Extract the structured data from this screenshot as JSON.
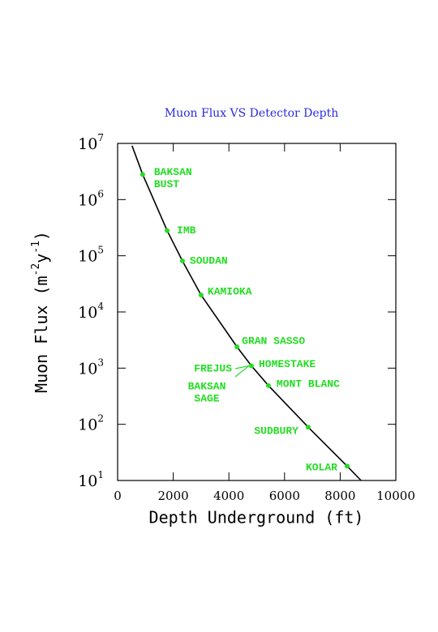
{
  "chart_data": {
    "type": "scatter",
    "title": "Muon Flux VS Detector Depth",
    "xlabel": "Depth Underground (ft)",
    "ylabel": [
      "Muon Flux (m",
      "-2",
      "y",
      "-1",
      ")"
    ],
    "xlim": [
      0,
      10000
    ],
    "xticks": [
      0,
      2000,
      4000,
      6000,
      8000,
      10000
    ],
    "ylim": [
      10,
      10000000
    ],
    "log_y": true,
    "yticks": [
      {
        "value": 10,
        "label": "10",
        "exp": "1"
      },
      {
        "value": 100,
        "label": "10",
        "exp": "2"
      },
      {
        "value": 1000,
        "label": "10",
        "exp": "3"
      },
      {
        "value": 10000,
        "label": "10",
        "exp": "4"
      },
      {
        "value": 100000,
        "label": "10",
        "exp": "5"
      },
      {
        "value": 1000000,
        "label": "10",
        "exp": "6"
      },
      {
        "value": 10000000,
        "label": "10",
        "exp": "7"
      }
    ],
    "curve": {
      "color": "#000000",
      "x": [
        520,
        900,
        1780,
        2330,
        3000,
        4290,
        4810,
        5420,
        6850,
        8250,
        8750
      ],
      "values": [
        9100000,
        2800000,
        280000,
        81000,
        20000,
        2400,
        1100,
        490,
        89,
        18,
        10
      ]
    },
    "points": {
      "color": "#22dd22",
      "x": [
        900,
        1780,
        2330,
        3000,
        4290,
        4810,
        5420,
        6850,
        8250
      ],
      "values": [
        2800000,
        280000,
        81000,
        20000,
        2400,
        1100,
        490,
        89,
        18
      ],
      "labels": [
        [
          "BAKSAN",
          "BUST"
        ],
        [
          "IMB"
        ],
        [
          "SOUDAN"
        ],
        [
          "KAMIOKA"
        ],
        [
          "GRAN SASSO"
        ],
        [
          "HOMESTAKE"
        ],
        [
          "MONT BLANC"
        ],
        [
          "SUDBURY"
        ],
        [
          "KOLAR"
        ]
      ]
    },
    "annotations": [
      [
        "FREJUS"
      ],
      [
        "BAKSAN",
        "SAGE"
      ]
    ]
  }
}
